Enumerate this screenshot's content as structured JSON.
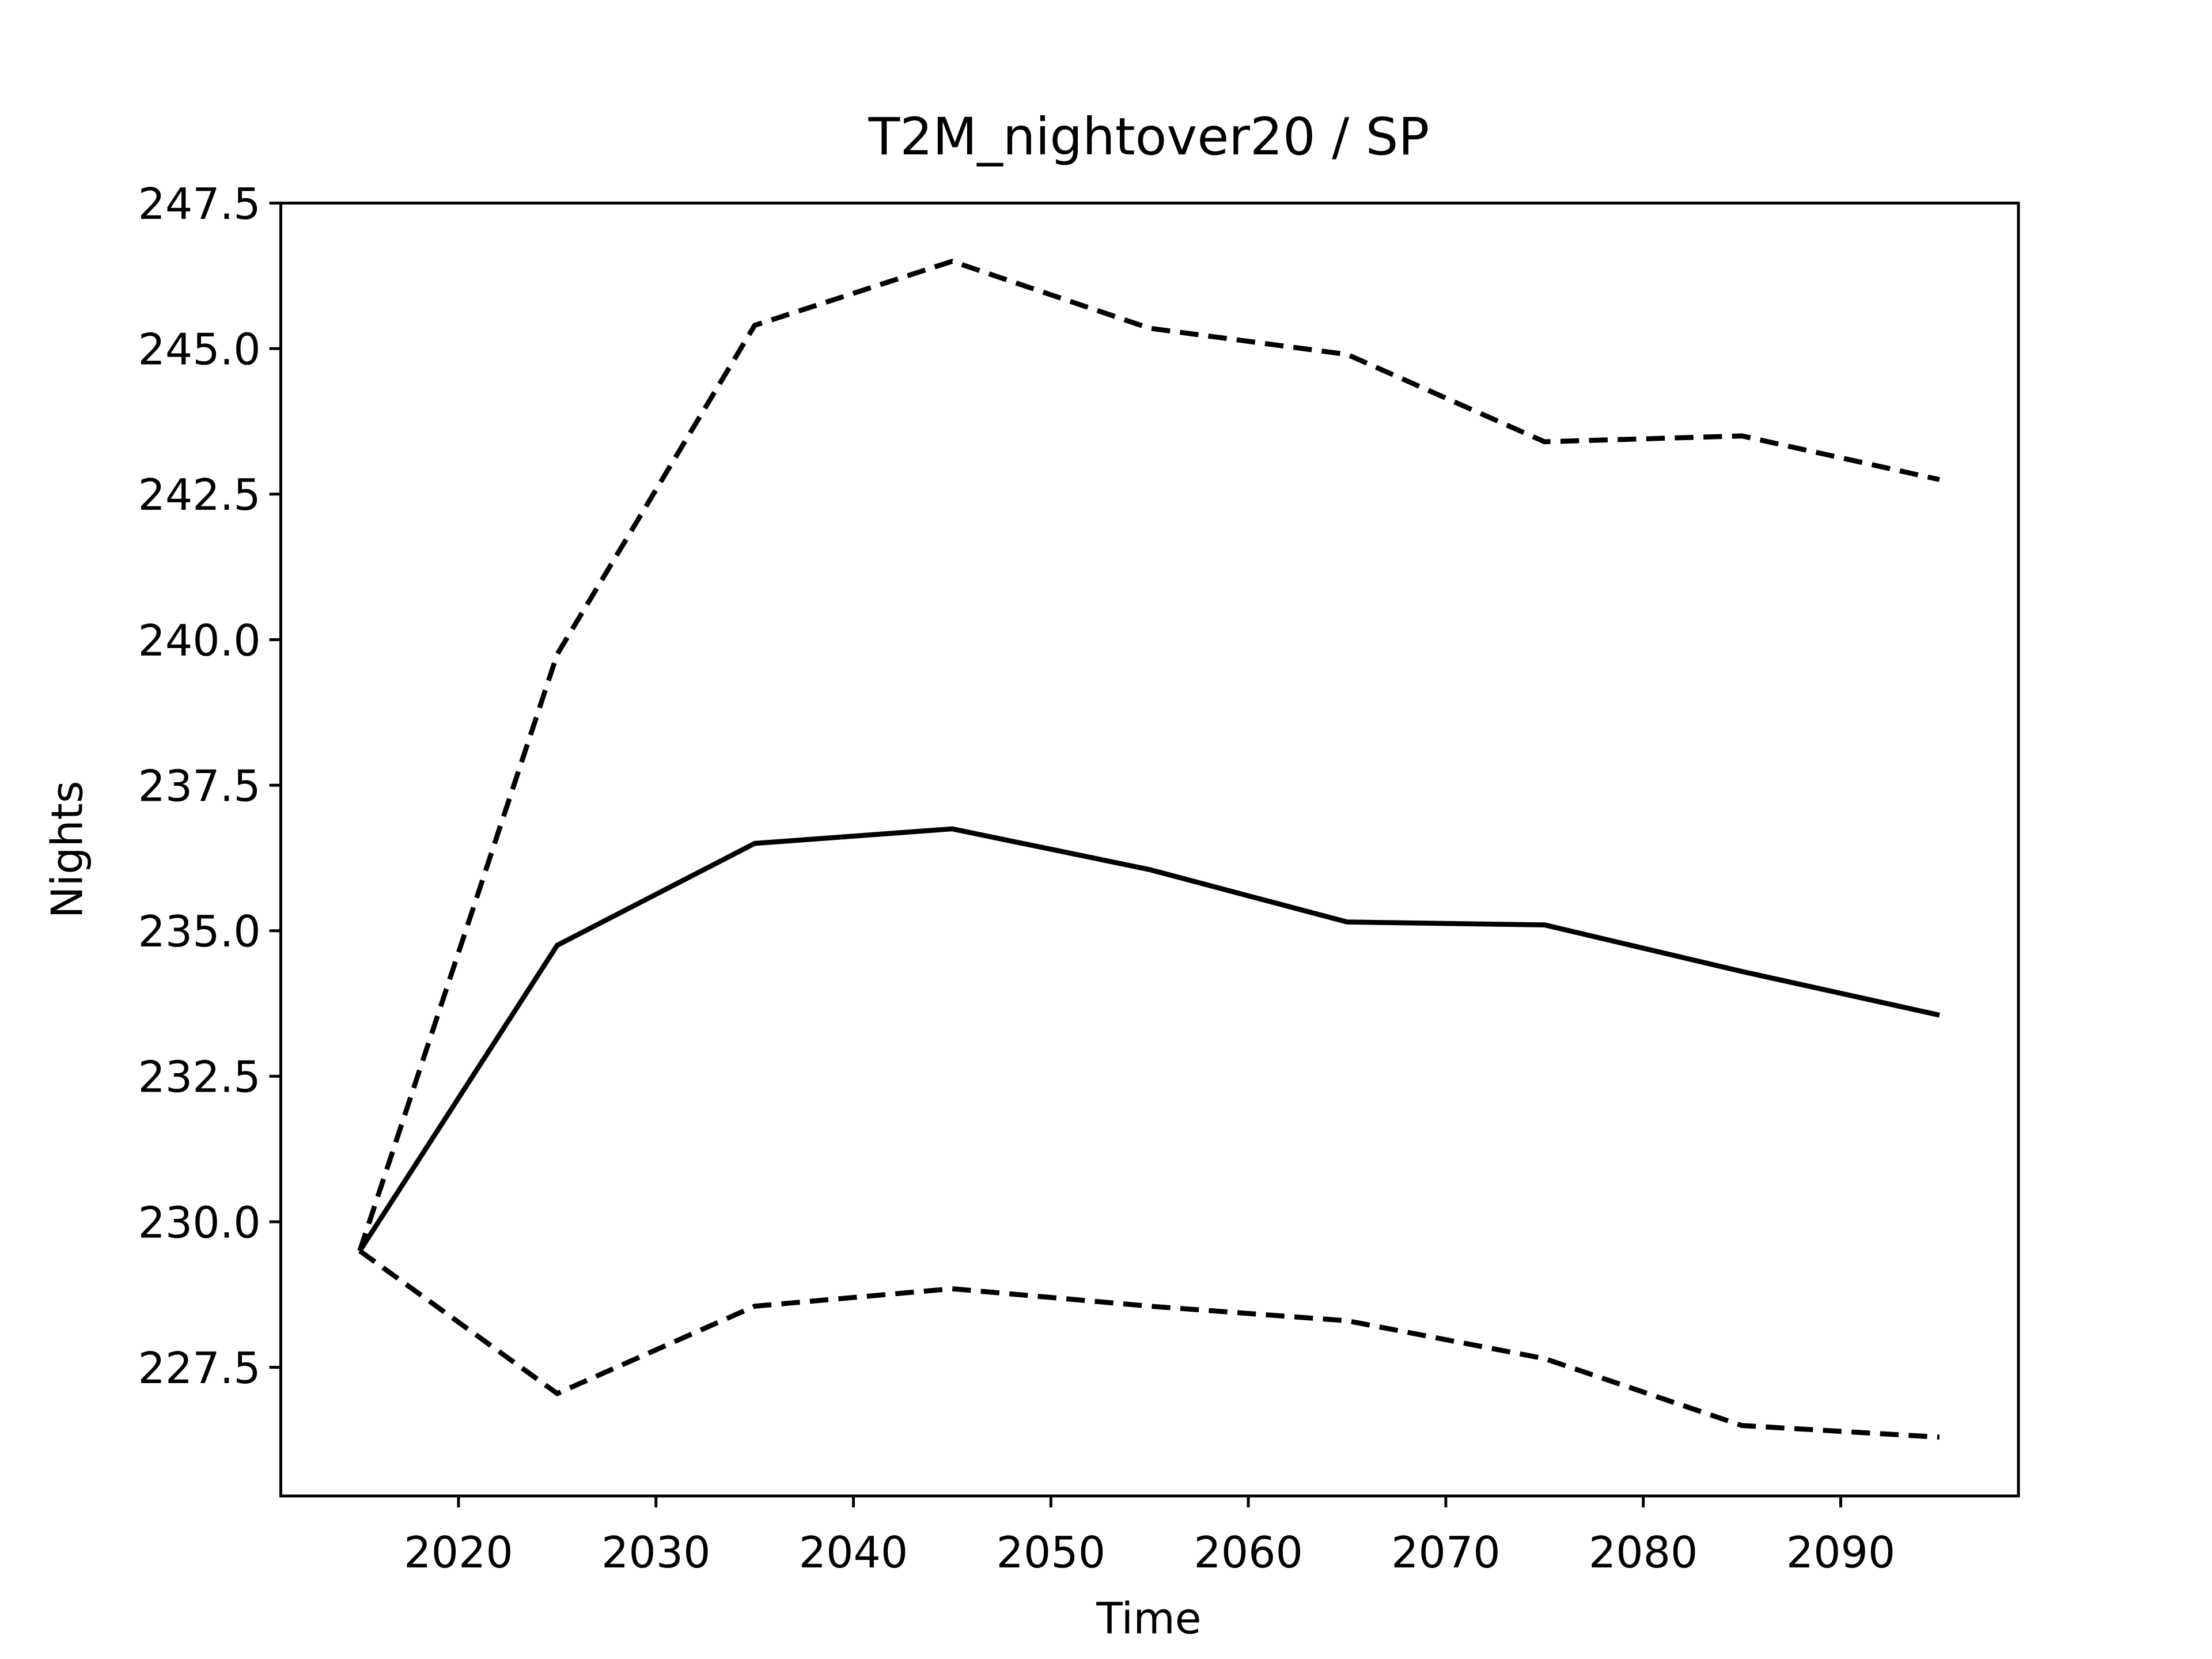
{
  "chart_data": {
    "type": "line",
    "title": "T2M_nightover20 / SP",
    "x_label": "Time",
    "y_label": "Nights",
    "x": [
      2015,
      2025,
      2035,
      2045,
      2055,
      2065,
      2075,
      2085,
      2095
    ],
    "series": [
      {
        "color": "#000000",
        "linestyle": "solid",
        "values": [
          229.5,
          234.75,
          236.5,
          236.75,
          236.05,
          235.15,
          235.1,
          234.3,
          233.55
        ]
      },
      {
        "color": "#000000",
        "linestyle": "dashed",
        "values": [
          229.5,
          239.75,
          245.4,
          246.5,
          245.35,
          244.9,
          243.4,
          243.5,
          242.75
        ]
      },
      {
        "color": "#000000",
        "linestyle": "dashed",
        "values": [
          229.5,
          227.05,
          228.55,
          228.85,
          228.55,
          228.3,
          227.65,
          226.5,
          226.3
        ]
      }
    ],
    "xlim": [
      2011,
      2099
    ],
    "ylim": [
      225.29,
      247.5
    ],
    "xticks": [
      2020,
      2030,
      2040,
      2050,
      2060,
      2070,
      2080,
      2090
    ],
    "yticks": [
      {
        "value": 227.5,
        "label": "227.5"
      },
      {
        "value": 230,
        "label": "230.0"
      },
      {
        "value": 232.5,
        "label": "232.5"
      },
      {
        "value": 235,
        "label": "235.0"
      },
      {
        "value": 237.5,
        "label": "237.5"
      },
      {
        "value": 240,
        "label": "240.0"
      },
      {
        "value": 242.5,
        "label": "242.5"
      },
      {
        "value": 245,
        "label": "245.0"
      },
      {
        "value": 247.5,
        "label": "247.5"
      }
    ],
    "grid": false
  }
}
